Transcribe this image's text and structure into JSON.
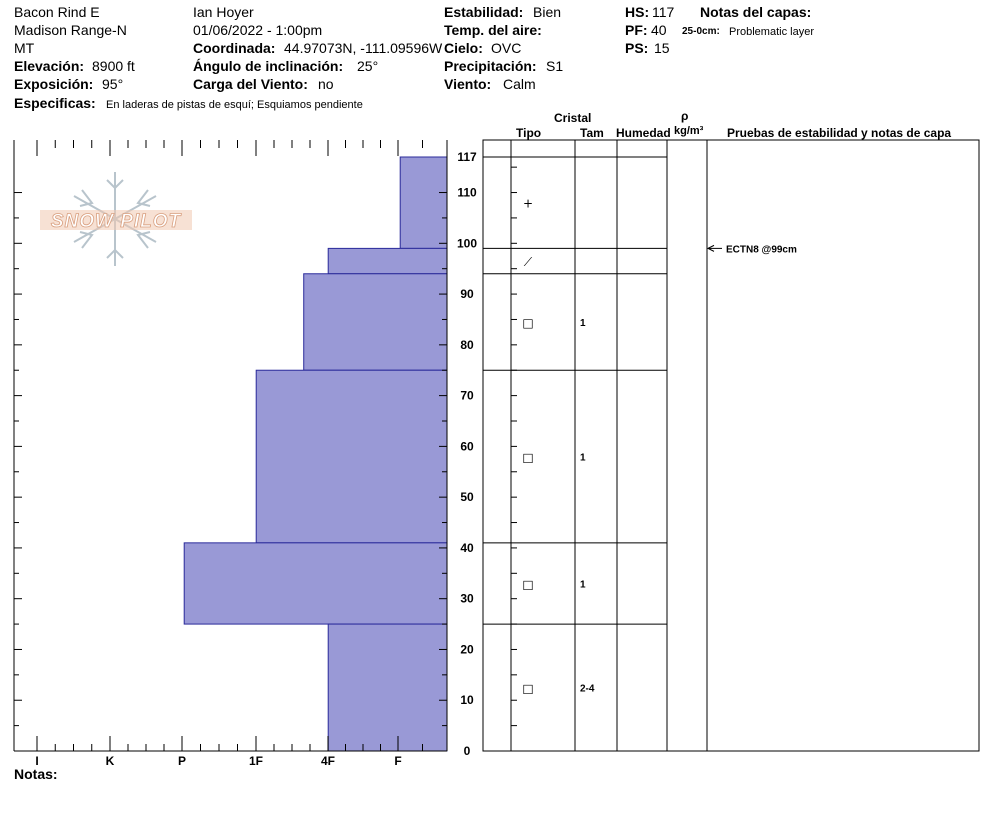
{
  "header": {
    "location": "Bacon Rind E",
    "range": "Madison Range-N",
    "state": "MT",
    "elevation_label": "Elevación:",
    "elevation_value": "8900 ft",
    "aspect_label": "Exposición:",
    "aspect_value": "95°",
    "specifics_label": "Especificas:",
    "specifics_value": "En laderas de pistas de esquí; Esquiamos pendiente",
    "observer": "Ian Hoyer",
    "datetime": "01/06/2022 - 1:00pm",
    "coord_label": "Coordinada:",
    "coord_value": "44.97073N, -111.09596W",
    "slope_label": "Ángulo de inclinación:",
    "slope_value": "25°",
    "wind_load_label": "Carga del Viento:",
    "wind_load_value": "no",
    "stability_label": "Estabilidad:",
    "stability_value": "Bien",
    "air_temp_label": "Temp. del aire:",
    "air_temp_value": "",
    "sky_label": "Cielo:",
    "sky_value": "OVC",
    "precip_label": "Precipitación:",
    "precip_value": "S1",
    "wind_label": "Viento:",
    "wind_value": "Calm",
    "hs_label": "HS:",
    "hs_value": "117",
    "pf_label": "PF:",
    "pf_value": "40",
    "ps_label": "PS:",
    "ps_value": "15",
    "layer_notes_label": "Notas del capas:",
    "layer_note_depth": "25-0cm:",
    "layer_note_text": "Problematic layer"
  },
  "logo_text": "SNOW PILOT",
  "notes_label": "Notas:",
  "columns": {
    "crystal": "Cristal",
    "type": "Tipo",
    "size": "Tam",
    "moisture": "Humedad",
    "rho": "ρ",
    "density_unit": "kg/m³",
    "tests": "Pruebas de estabilidad y notas de capa"
  },
  "colors": {
    "hardness_fill": "#9999d6",
    "hardness_stroke": "#2a2a9a"
  },
  "chart_data": {
    "type": "bar",
    "orientation": "horizontal",
    "title": "",
    "ylabel": "",
    "xlabel": "",
    "ylim": [
      0,
      117
    ],
    "y_ticks": [
      0,
      10,
      20,
      30,
      40,
      50,
      60,
      70,
      80,
      90,
      100,
      110,
      117
    ],
    "x_categories": [
      "I",
      "K",
      "P",
      "1F",
      "4F",
      "F"
    ],
    "x_order_value": {
      "I": 6,
      "K": 5,
      "P": 4,
      "1F": 3,
      "4F": 2,
      "F": 1
    },
    "layers": [
      {
        "top": 117,
        "bottom": 99,
        "hardness": "F",
        "hardness_value": 0.65
      },
      {
        "top": 99,
        "bottom": 94,
        "hardness": "4F",
        "hardness_value": 1.65
      },
      {
        "top": 94,
        "bottom": 75,
        "hardness": "4F+",
        "hardness_value": 1.99
      },
      {
        "top": 75,
        "bottom": 41,
        "hardness": "1F",
        "hardness_value": 2.65
      },
      {
        "top": 41,
        "bottom": 25,
        "hardness": "P",
        "hardness_value": 3.65
      },
      {
        "top": 25,
        "bottom": 0,
        "hardness": "4F",
        "hardness_value": 1.65
      }
    ],
    "layer_boundaries": [
      117,
      99,
      94,
      75,
      41,
      25,
      0
    ],
    "grain_marks": [
      {
        "depth": 108,
        "symbol": "+",
        "size": ""
      },
      {
        "depth": 96.5,
        "symbol": "⟋",
        "size": ""
      },
      {
        "depth": 84.5,
        "symbol": "□",
        "size": "1"
      },
      {
        "depth": 58,
        "symbol": "□",
        "size": "1"
      },
      {
        "depth": 33,
        "symbol": "□",
        "size": "1"
      },
      {
        "depth": 12.5,
        "symbol": "□",
        "size": "2-4"
      }
    ],
    "tests": [
      {
        "depth": 99,
        "label": "ECTN8 @99cm"
      }
    ]
  }
}
